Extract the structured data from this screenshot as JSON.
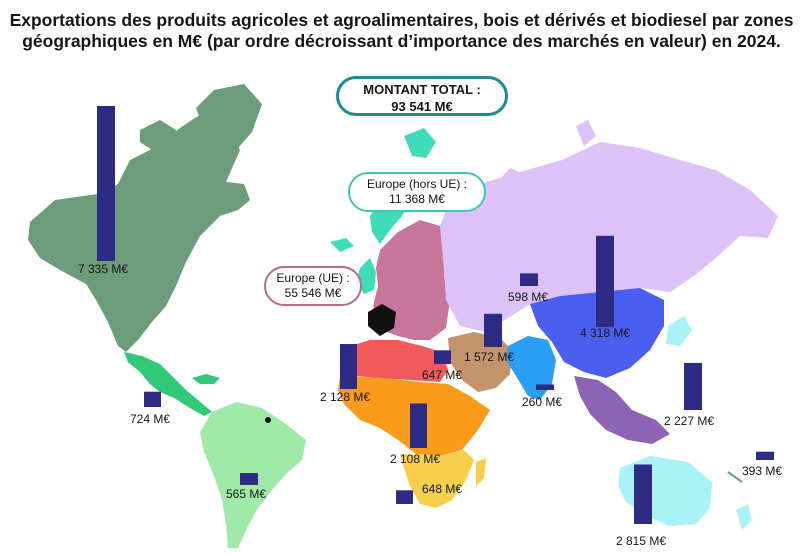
{
  "title": "Exportations des produits agricoles et agroalimentaires, bois et dérivés et biodiesel par zones géographiques en M€ (par ordre décroissant d’importance des marchés en valeur) en 2024.",
  "total": {
    "label": "MONTANT TOTAL :",
    "value": "93 541 M€"
  },
  "callouts": {
    "europe_ue": {
      "label": "Europe (UE) :",
      "value": "55 546 M€"
    },
    "europe_hors_ue": {
      "label": "Europe (hors UE) :",
      "value": "11 368 M€"
    }
  },
  "colors": {
    "bar": "#2e2b85",
    "north_america": "#6c9c7a",
    "central_america": "#2fc977",
    "south_america": "#9feaa9",
    "europe_ue": "#c8759b",
    "europe_hors_ue": "#3fdcb8",
    "north_africa": "#f05a5a",
    "west_central_africa": "#fb9b1a",
    "southern_africa": "#f8cf4a",
    "middle_east": "#c3936b",
    "russia_central_asia": "#dcc2f6",
    "south_asia": "#2a9df5",
    "east_asia": "#4a5ef0",
    "southeast_asia": "#8d64b4",
    "oceania": "#a9f3f7",
    "france": "#111111"
  },
  "chart_data": {
    "type": "bar",
    "title": "Exportations des produits agricoles et agroalimentaires, bois et dérivés et biodiesel par zones géographiques en M€ (par ordre décroissant d’importance des marchés en valeur) en 2024.",
    "unit": "M€",
    "total": 93541,
    "series": [
      {
        "label": "7 335 M€",
        "value": 7335
      },
      {
        "label": "4 318 M€",
        "value": 4318
      },
      {
        "label": "2 815 M€",
        "value": 2815
      },
      {
        "label": "2 227 M€",
        "value": 2227
      },
      {
        "label": "2 128 M€",
        "value": 2128
      },
      {
        "label": "2 108 M€",
        "value": 2108
      },
      {
        "label": "1 572 M€",
        "value": 1572
      },
      {
        "label": "724 M€",
        "value": 724
      },
      {
        "label": "648 M€",
        "value": 648
      },
      {
        "label": "647 M€",
        "value": 647
      },
      {
        "label": "598 M€",
        "value": 598
      },
      {
        "label": "565 M€",
        "value": 565
      },
      {
        "label": "393 M€",
        "value": 393
      },
      {
        "label": "260 M€",
        "value": 260
      }
    ]
  }
}
